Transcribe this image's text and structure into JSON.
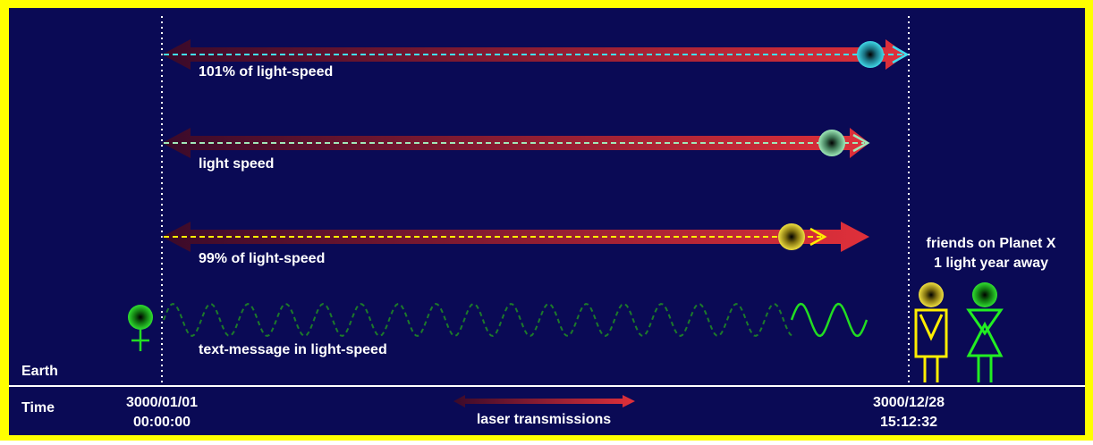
{
  "diagram": {
    "colors": {
      "frame": "#ffff00",
      "background": "#0a0a55",
      "laser_start": "#3a0a2a",
      "laser_end": "#e0303a",
      "text": "#ffffff"
    },
    "rows": [
      {
        "label": "101% of light-speed",
        "particle_color": "#29c0d8",
        "trail_color": "#40e0f0"
      },
      {
        "label": "light speed",
        "particle_color": "#7fd8a0",
        "trail_color": "#a0e8b8"
      },
      {
        "label": "99% of light-speed",
        "particle_color": "#e0d020",
        "trail_color": "#ffee00"
      }
    ],
    "message_label": "text-message in light-speed",
    "message_color": "#22dd22",
    "earth_label": "Earth",
    "time_label": "Time",
    "start_date": "3000/01/01",
    "start_time": "00:00:00",
    "end_date": "3000/12/28",
    "end_time": "15:12:32",
    "legend_label": "laser transmissions",
    "friends_line1": "friends on Planet X",
    "friends_line2": "1 light year away",
    "earth_person_color": "#22dd22",
    "friend_male_color": "#ffee00",
    "friend_female_color": "#22ee22"
  }
}
